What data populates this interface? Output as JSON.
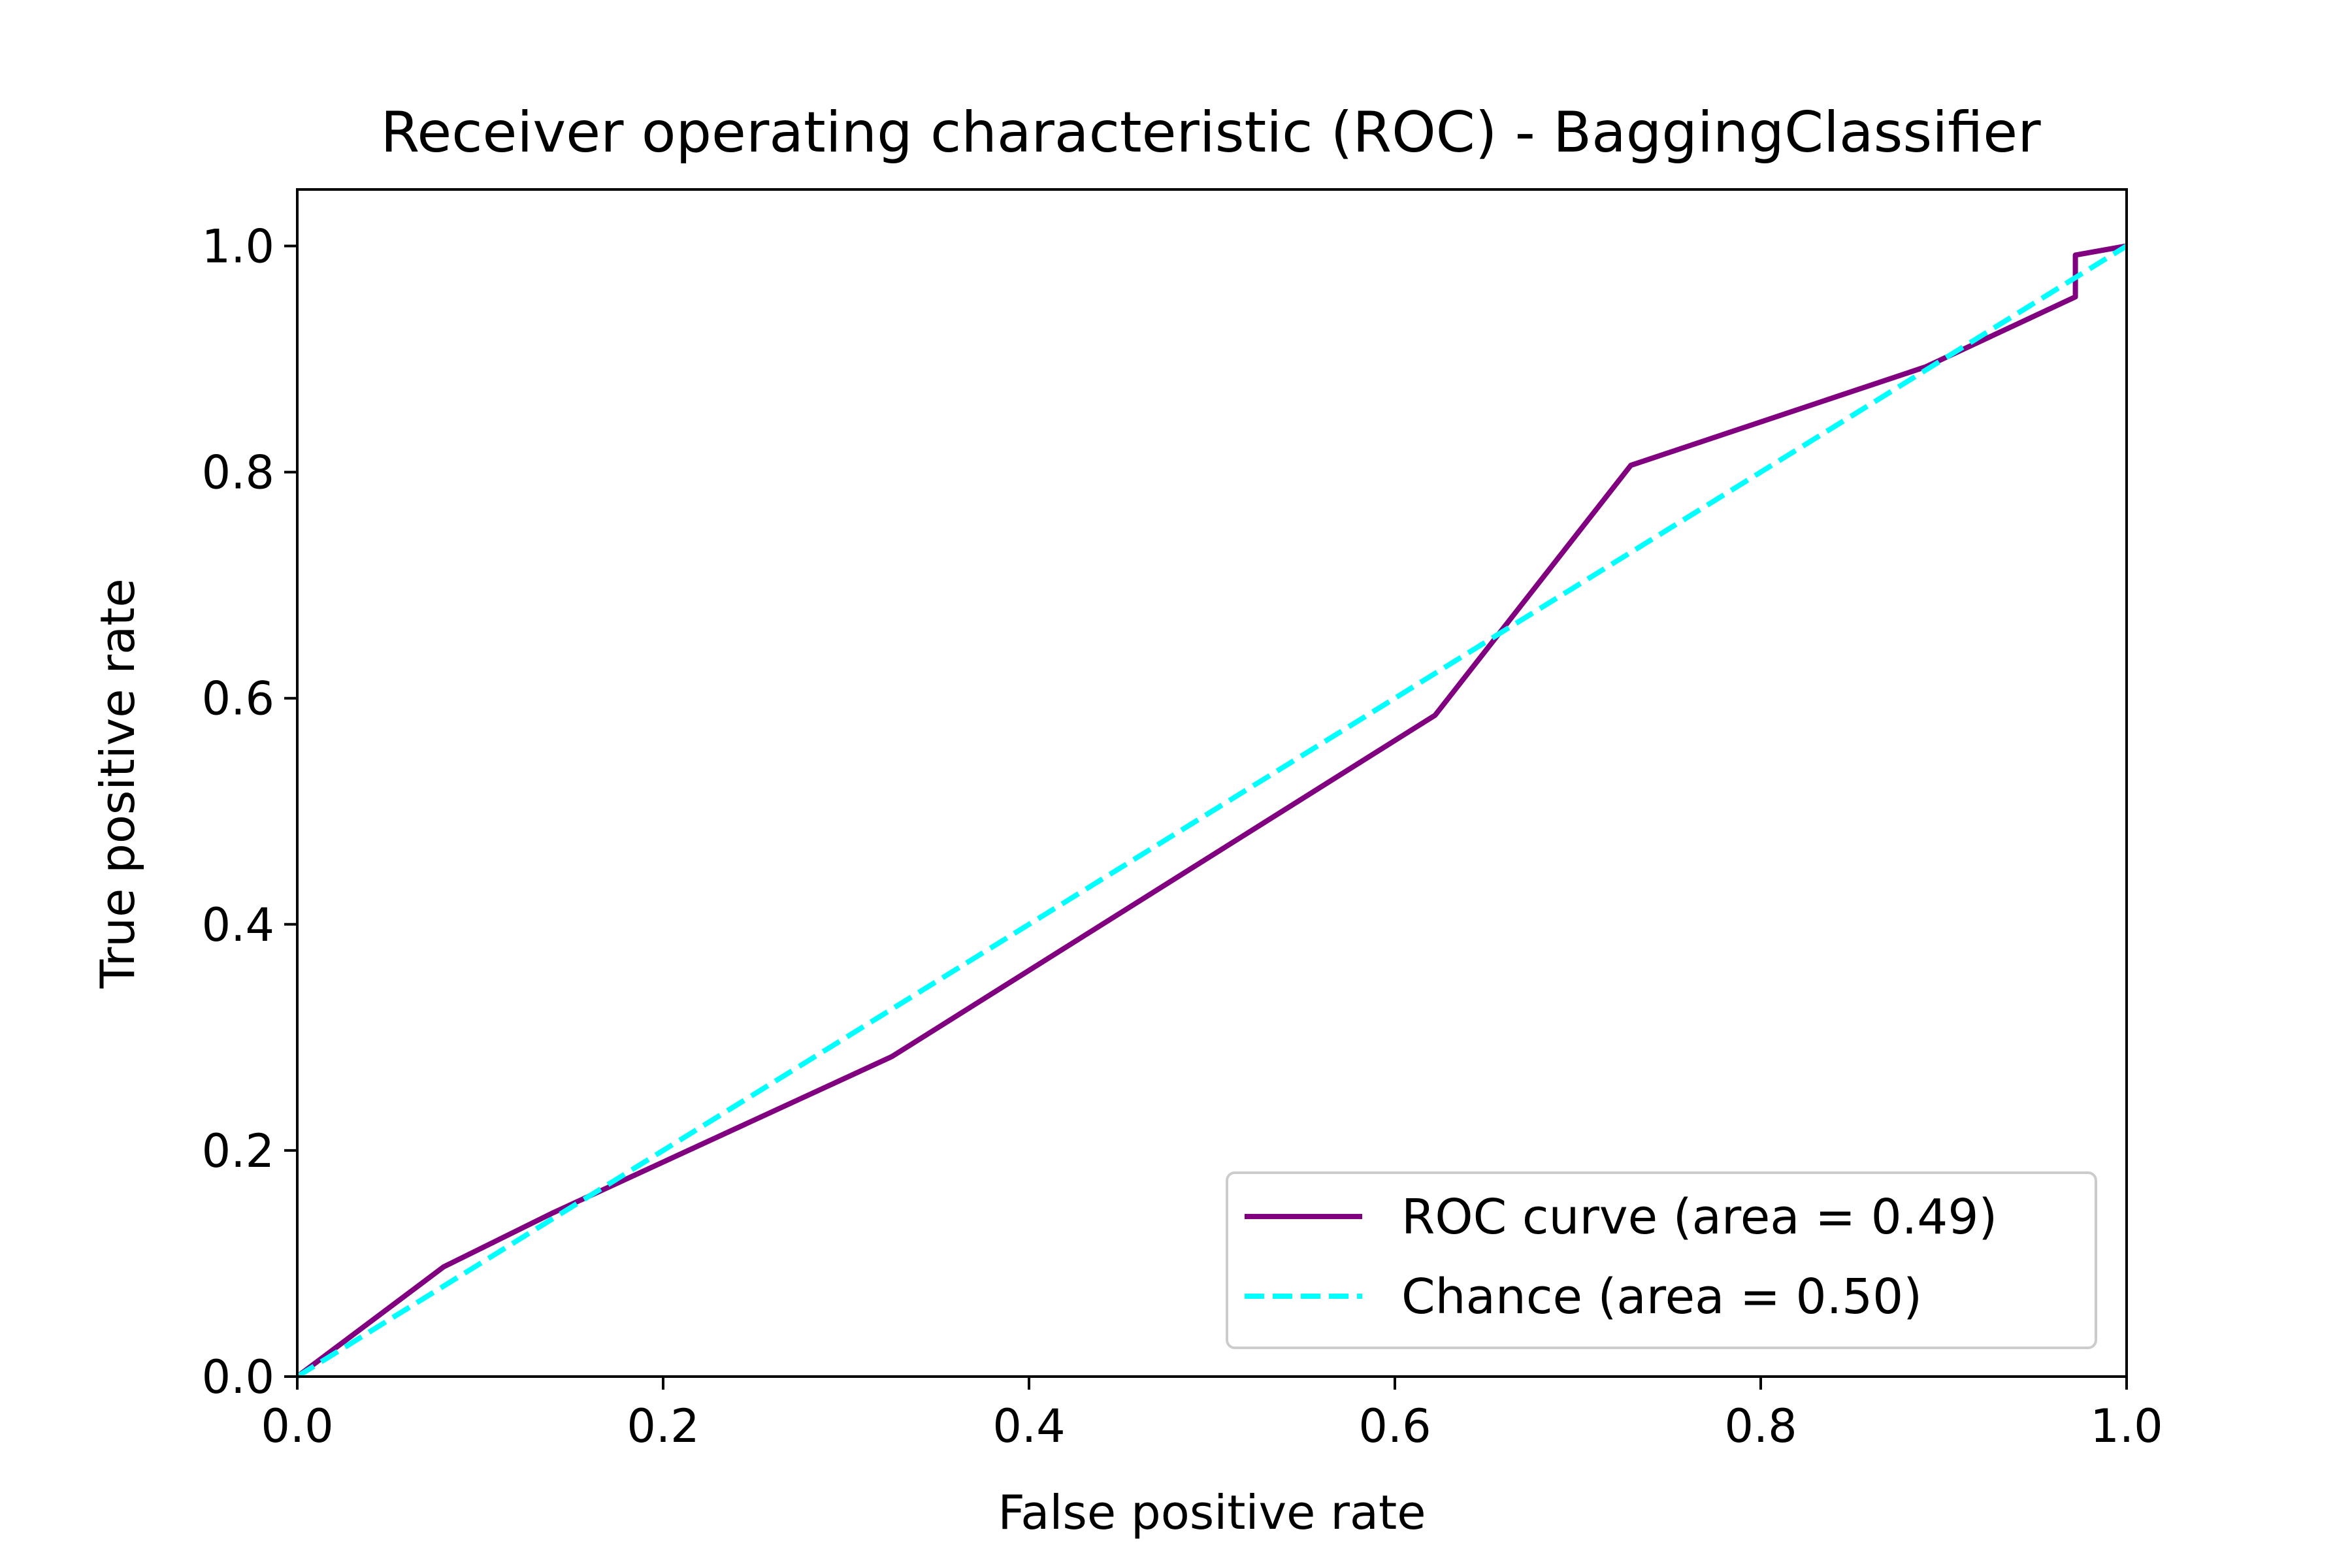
{
  "chart_data": {
    "type": "line",
    "title": "Receiver operating characteristic (ROC) - BaggingClassifier",
    "xlabel": "False positive rate",
    "ylabel": "True positive rate",
    "xlim": [
      0.0,
      1.0
    ],
    "ylim": [
      0.0,
      1.05
    ],
    "x_ticks": [
      "0.0",
      "0.2",
      "0.4",
      "0.6",
      "0.8",
      "1.0"
    ],
    "y_ticks": [
      "0.0",
      "0.2",
      "0.4",
      "0.6",
      "0.8",
      "1.0"
    ],
    "grid": false,
    "legend_position": "lower-right",
    "series": [
      {
        "name": "ROC curve (area = 0.49)",
        "color": "#800080",
        "style": "solid",
        "x": [
          0.0,
          0.08,
          0.14,
          0.325,
          0.622,
          0.729,
          0.89,
          0.972,
          0.972,
          1.0
        ],
        "y": [
          0.0,
          0.097,
          0.145,
          0.283,
          0.585,
          0.806,
          0.893,
          0.955,
          0.992,
          1.0
        ]
      },
      {
        "name": "Chance (area = 0.50)",
        "color": "#00ffff",
        "style": "dashed",
        "x": [
          0.0,
          1.0
        ],
        "y": [
          0.0,
          1.0
        ]
      }
    ]
  }
}
